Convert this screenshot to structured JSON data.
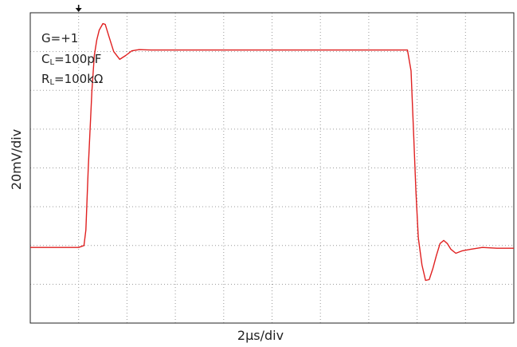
{
  "chart_data": {
    "type": "line",
    "xlabel": "2µs/div",
    "ylabel": "20mV/div",
    "annotations": {
      "gain": "G=+1",
      "cl_main": "C",
      "cl_sub": "L",
      "cl_value": "=100pF",
      "rl_main": "R",
      "rl_sub": "L",
      "rl_value": "=100kΩ"
    },
    "grid": true,
    "xlim": [
      0,
      20
    ],
    "ylim": [
      0,
      80
    ],
    "trigger_x": 2.0,
    "series": [
      {
        "color": "#e02020",
        "x": [
          0,
          1.0,
          2.0,
          2.22,
          2.3,
          2.4,
          2.55,
          2.65,
          2.75,
          2.85,
          3.0,
          3.1,
          3.25,
          3.45,
          3.7,
          3.95,
          4.2,
          4.5,
          5.0,
          8.0,
          11.0,
          14.0,
          15.6,
          15.75,
          15.85,
          15.95,
          16.05,
          16.2,
          16.35,
          16.5,
          16.65,
          16.8,
          16.95,
          17.1,
          17.25,
          17.4,
          17.6,
          17.85,
          18.2,
          18.7,
          19.3,
          20.0
        ],
        "y": [
          19.5,
          19.5,
          19.5,
          20.0,
          24.0,
          40.0,
          60.0,
          69.0,
          73.0,
          75.5,
          77.2,
          77.0,
          74.0,
          70.0,
          68.0,
          69.0,
          70.2,
          70.5,
          70.4,
          70.4,
          70.4,
          70.4,
          70.4,
          65.0,
          50.0,
          34.0,
          22.0,
          15.0,
          11.0,
          11.2,
          14.0,
          17.5,
          20.5,
          21.3,
          20.5,
          19.0,
          18.0,
          18.6,
          19.0,
          19.5,
          19.3,
          19.3
        ]
      }
    ]
  },
  "colors": {
    "trace": "#e02020",
    "frame": "#222222",
    "grid": "#9a9a9a"
  }
}
